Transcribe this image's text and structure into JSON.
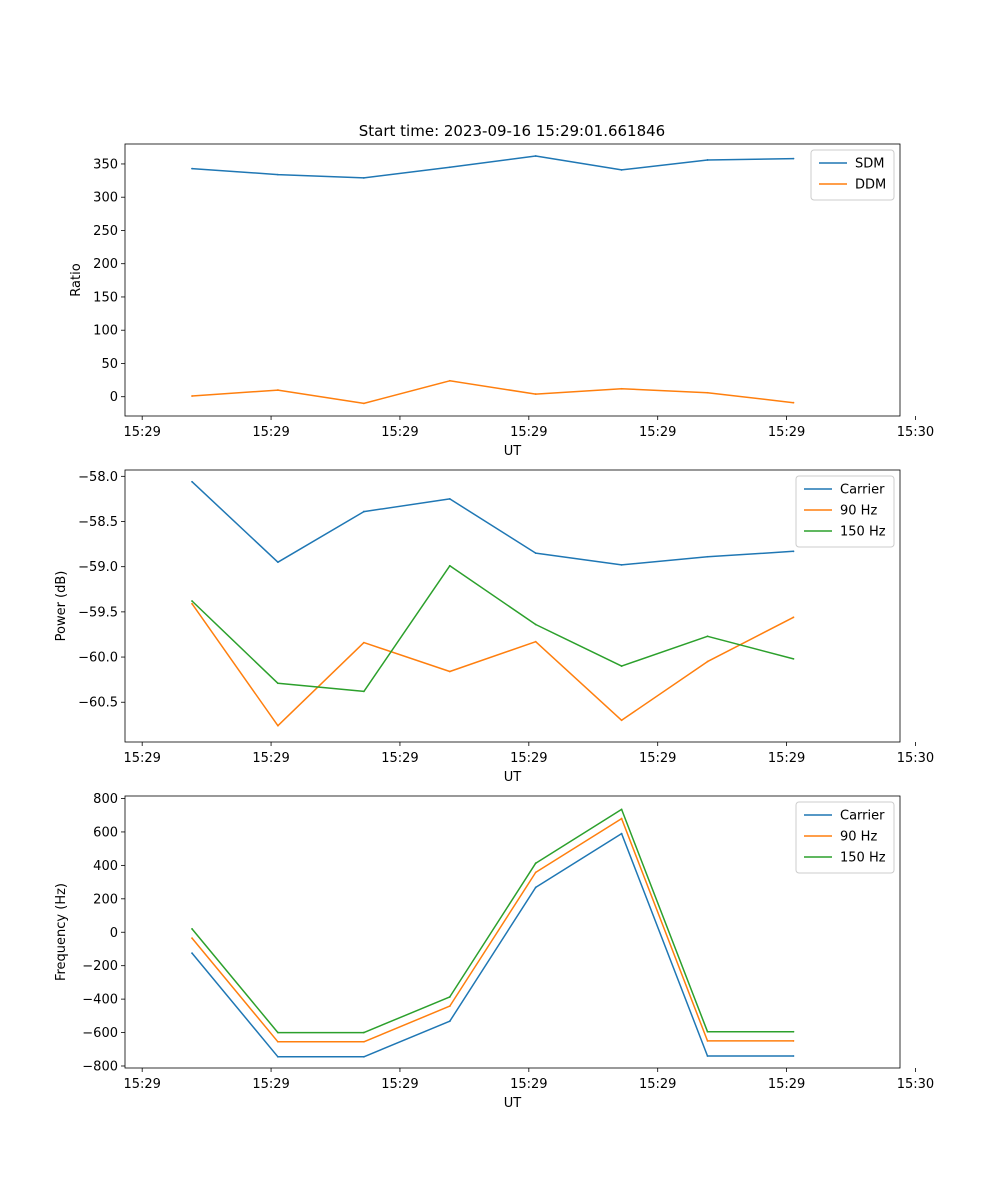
{
  "figure_title": "Start time: 2023-09-16 15:29:01.661846",
  "chart_data": [
    {
      "type": "line",
      "title": "Start time: 2023-09-16 15:29:01.661846",
      "xlabel": "UT",
      "ylabel": "Ratio",
      "x": [
        1,
        2,
        3,
        4,
        5,
        6,
        7,
        8
      ],
      "xlim": [
        0.22,
        9.24
      ],
      "xticks": [
        0.42,
        1.92,
        3.42,
        4.92,
        6.42,
        7.92,
        9.42
      ],
      "xtick_labels": [
        "15:29",
        "15:29",
        "15:29",
        "15:29",
        "15:29",
        "15:29",
        "15:30"
      ],
      "ylim": [
        -29,
        380
      ],
      "yticks": [
        0,
        50,
        100,
        150,
        200,
        250,
        300,
        350
      ],
      "ytick_labels": [
        "0",
        "50",
        "100",
        "150",
        "200",
        "250",
        "300",
        "350"
      ],
      "legend": "top-right",
      "series": [
        {
          "name": "SDM",
          "color": "#1f77b4",
          "values": [
            343,
            334,
            329,
            345,
            362,
            341,
            356,
            358
          ]
        },
        {
          "name": "DDM",
          "color": "#ff7f0e",
          "values": [
            1,
            10,
            -10,
            24,
            4,
            12,
            6,
            -9
          ]
        }
      ]
    },
    {
      "type": "line",
      "title": "",
      "xlabel": "UT",
      "ylabel": "Power (dB)",
      "x": [
        1,
        2,
        3,
        4,
        5,
        6,
        7,
        8
      ],
      "xlim": [
        0.22,
        9.24
      ],
      "xticks": [
        0.42,
        1.92,
        3.42,
        4.92,
        6.42,
        7.92,
        9.42
      ],
      "xtick_labels": [
        "15:29",
        "15:29",
        "15:29",
        "15:29",
        "15:29",
        "15:29",
        "15:30"
      ],
      "ylim": [
        -60.94,
        -57.93
      ],
      "yticks": [
        -60.5,
        -60.0,
        -59.5,
        -59.0,
        -58.5,
        -58.0
      ],
      "ytick_labels": [
        "−60.5",
        "−60.0",
        "−59.5",
        "−59.0",
        "−58.5",
        "−58.0"
      ],
      "legend": "top-right",
      "series": [
        {
          "name": "Carrier",
          "color": "#1f77b4",
          "values": [
            -58.06,
            -58.95,
            -58.39,
            -58.25,
            -58.85,
            -58.98,
            -58.89,
            -58.83
          ]
        },
        {
          "name": "90 Hz",
          "color": "#ff7f0e",
          "values": [
            -59.41,
            -60.76,
            -59.84,
            -60.16,
            -59.83,
            -60.7,
            -60.05,
            -59.56
          ]
        },
        {
          "name": "150 Hz",
          "color": "#2ca02c",
          "values": [
            -59.38,
            -60.29,
            -60.38,
            -58.99,
            -59.64,
            -60.1,
            -59.77,
            -60.02
          ]
        }
      ]
    },
    {
      "type": "line",
      "title": "",
      "xlabel": "UT",
      "ylabel": "Frequency (Hz)",
      "x": [
        1,
        2,
        3,
        4,
        5,
        6,
        7,
        8
      ],
      "xlim": [
        0.22,
        9.24
      ],
      "xticks": [
        0.42,
        1.92,
        3.42,
        4.92,
        6.42,
        7.92,
        9.42
      ],
      "xtick_labels": [
        "15:29",
        "15:29",
        "15:29",
        "15:29",
        "15:29",
        "15:29",
        "15:30"
      ],
      "ylim": [
        -812,
        815
      ],
      "yticks": [
        -800,
        -600,
        -400,
        -200,
        0,
        200,
        400,
        600,
        800
      ],
      "ytick_labels": [
        "−800",
        "−600",
        "−400",
        "−200",
        "0",
        "200",
        "400",
        "600",
        "800"
      ],
      "legend": "top-right",
      "series": [
        {
          "name": "Carrier",
          "color": "#1f77b4",
          "values": [
            -125,
            -745,
            -745,
            -532,
            268,
            590,
            -740,
            -740
          ]
        },
        {
          "name": "90 Hz",
          "color": "#ff7f0e",
          "values": [
            -35,
            -655,
            -655,
            -442,
            358,
            680,
            -650,
            -650
          ]
        },
        {
          "name": "150 Hz",
          "color": "#2ca02c",
          "values": [
            20,
            -600,
            -600,
            -387,
            413,
            735,
            -595,
            -595
          ]
        }
      ]
    }
  ]
}
